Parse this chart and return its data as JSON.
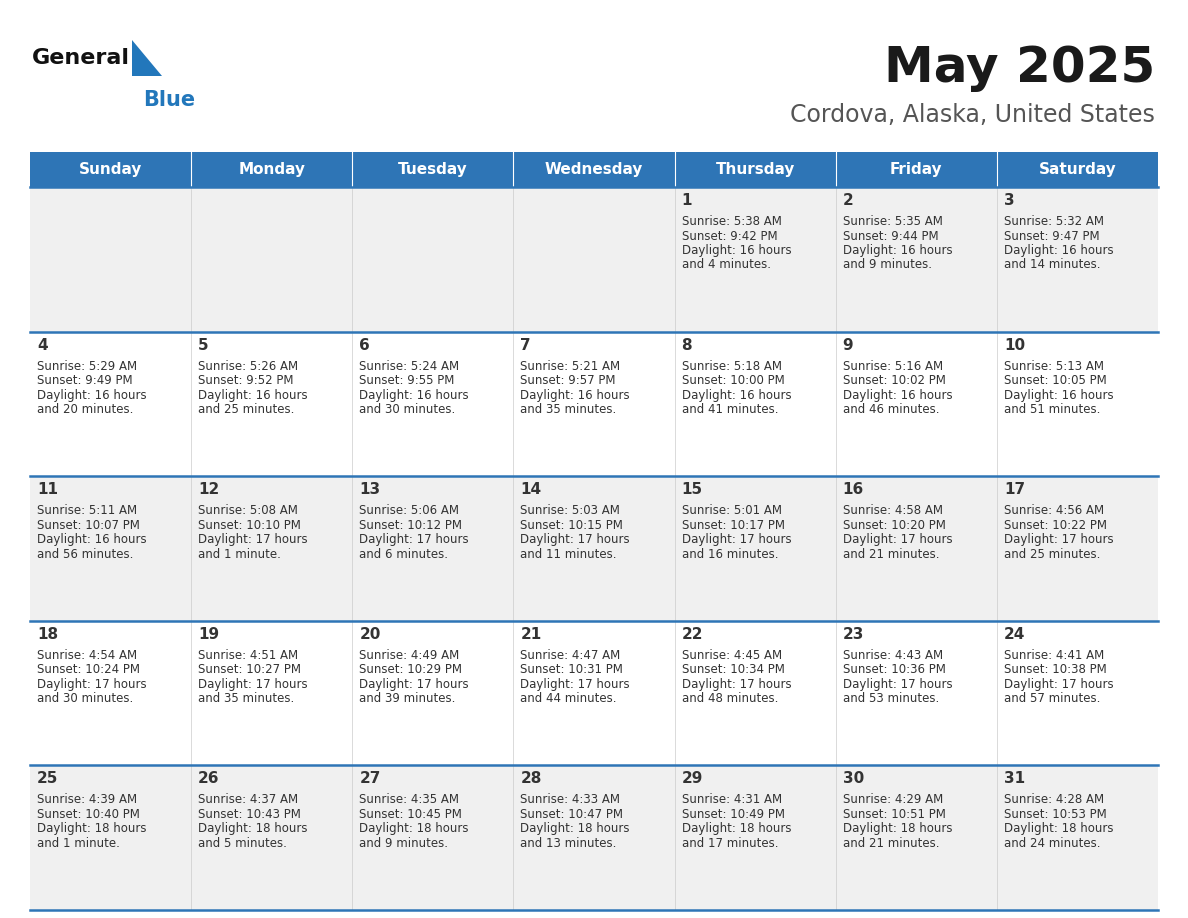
{
  "title": "May 2025",
  "subtitle": "Cordova, Alaska, United States",
  "days_of_week": [
    "Sunday",
    "Monday",
    "Tuesday",
    "Wednesday",
    "Thursday",
    "Friday",
    "Saturday"
  ],
  "header_bg": "#2E75B6",
  "header_text": "#FFFFFF",
  "row_bg_odd": "#F0F0F0",
  "row_bg_even": "#FFFFFF",
  "day_number_color": "#333333",
  "text_color": "#333333",
  "separator_color": "#2E75B6",
  "logo_general_color": "#111111",
  "logo_blue_color": "#2277BB",
  "logo_triangle_color": "#2277BB",
  "calendar_data": [
    {
      "day": 1,
      "col": 4,
      "row": 0,
      "sunrise": "5:38 AM",
      "sunset": "9:42 PM",
      "daylight_hours": 16,
      "daylight_minutes": 4
    },
    {
      "day": 2,
      "col": 5,
      "row": 0,
      "sunrise": "5:35 AM",
      "sunset": "9:44 PM",
      "daylight_hours": 16,
      "daylight_minutes": 9
    },
    {
      "day": 3,
      "col": 6,
      "row": 0,
      "sunrise": "5:32 AM",
      "sunset": "9:47 PM",
      "daylight_hours": 16,
      "daylight_minutes": 14
    },
    {
      "day": 4,
      "col": 0,
      "row": 1,
      "sunrise": "5:29 AM",
      "sunset": "9:49 PM",
      "daylight_hours": 16,
      "daylight_minutes": 20
    },
    {
      "day": 5,
      "col": 1,
      "row": 1,
      "sunrise": "5:26 AM",
      "sunset": "9:52 PM",
      "daylight_hours": 16,
      "daylight_minutes": 25
    },
    {
      "day": 6,
      "col": 2,
      "row": 1,
      "sunrise": "5:24 AM",
      "sunset": "9:55 PM",
      "daylight_hours": 16,
      "daylight_minutes": 30
    },
    {
      "day": 7,
      "col": 3,
      "row": 1,
      "sunrise": "5:21 AM",
      "sunset": "9:57 PM",
      "daylight_hours": 16,
      "daylight_minutes": 35
    },
    {
      "day": 8,
      "col": 4,
      "row": 1,
      "sunrise": "5:18 AM",
      "sunset": "10:00 PM",
      "daylight_hours": 16,
      "daylight_minutes": 41
    },
    {
      "day": 9,
      "col": 5,
      "row": 1,
      "sunrise": "5:16 AM",
      "sunset": "10:02 PM",
      "daylight_hours": 16,
      "daylight_minutes": 46
    },
    {
      "day": 10,
      "col": 6,
      "row": 1,
      "sunrise": "5:13 AM",
      "sunset": "10:05 PM",
      "daylight_hours": 16,
      "daylight_minutes": 51
    },
    {
      "day": 11,
      "col": 0,
      "row": 2,
      "sunrise": "5:11 AM",
      "sunset": "10:07 PM",
      "daylight_hours": 16,
      "daylight_minutes": 56
    },
    {
      "day": 12,
      "col": 1,
      "row": 2,
      "sunrise": "5:08 AM",
      "sunset": "10:10 PM",
      "daylight_hours": 17,
      "daylight_minutes": 1
    },
    {
      "day": 13,
      "col": 2,
      "row": 2,
      "sunrise": "5:06 AM",
      "sunset": "10:12 PM",
      "daylight_hours": 17,
      "daylight_minutes": 6
    },
    {
      "day": 14,
      "col": 3,
      "row": 2,
      "sunrise": "5:03 AM",
      "sunset": "10:15 PM",
      "daylight_hours": 17,
      "daylight_minutes": 11
    },
    {
      "day": 15,
      "col": 4,
      "row": 2,
      "sunrise": "5:01 AM",
      "sunset": "10:17 PM",
      "daylight_hours": 17,
      "daylight_minutes": 16
    },
    {
      "day": 16,
      "col": 5,
      "row": 2,
      "sunrise": "4:58 AM",
      "sunset": "10:20 PM",
      "daylight_hours": 17,
      "daylight_minutes": 21
    },
    {
      "day": 17,
      "col": 6,
      "row": 2,
      "sunrise": "4:56 AM",
      "sunset": "10:22 PM",
      "daylight_hours": 17,
      "daylight_minutes": 25
    },
    {
      "day": 18,
      "col": 0,
      "row": 3,
      "sunrise": "4:54 AM",
      "sunset": "10:24 PM",
      "daylight_hours": 17,
      "daylight_minutes": 30
    },
    {
      "day": 19,
      "col": 1,
      "row": 3,
      "sunrise": "4:51 AM",
      "sunset": "10:27 PM",
      "daylight_hours": 17,
      "daylight_minutes": 35
    },
    {
      "day": 20,
      "col": 2,
      "row": 3,
      "sunrise": "4:49 AM",
      "sunset": "10:29 PM",
      "daylight_hours": 17,
      "daylight_minutes": 39
    },
    {
      "day": 21,
      "col": 3,
      "row": 3,
      "sunrise": "4:47 AM",
      "sunset": "10:31 PM",
      "daylight_hours": 17,
      "daylight_minutes": 44
    },
    {
      "day": 22,
      "col": 4,
      "row": 3,
      "sunrise": "4:45 AM",
      "sunset": "10:34 PM",
      "daylight_hours": 17,
      "daylight_minutes": 48
    },
    {
      "day": 23,
      "col": 5,
      "row": 3,
      "sunrise": "4:43 AM",
      "sunset": "10:36 PM",
      "daylight_hours": 17,
      "daylight_minutes": 53
    },
    {
      "day": 24,
      "col": 6,
      "row": 3,
      "sunrise": "4:41 AM",
      "sunset": "10:38 PM",
      "daylight_hours": 17,
      "daylight_minutes": 57
    },
    {
      "day": 25,
      "col": 0,
      "row": 4,
      "sunrise": "4:39 AM",
      "sunset": "10:40 PM",
      "daylight_hours": 18,
      "daylight_minutes": 1
    },
    {
      "day": 26,
      "col": 1,
      "row": 4,
      "sunrise": "4:37 AM",
      "sunset": "10:43 PM",
      "daylight_hours": 18,
      "daylight_minutes": 5
    },
    {
      "day": 27,
      "col": 2,
      "row": 4,
      "sunrise": "4:35 AM",
      "sunset": "10:45 PM",
      "daylight_hours": 18,
      "daylight_minutes": 9
    },
    {
      "day": 28,
      "col": 3,
      "row": 4,
      "sunrise": "4:33 AM",
      "sunset": "10:47 PM",
      "daylight_hours": 18,
      "daylight_minutes": 13
    },
    {
      "day": 29,
      "col": 4,
      "row": 4,
      "sunrise": "4:31 AM",
      "sunset": "10:49 PM",
      "daylight_hours": 18,
      "daylight_minutes": 17
    },
    {
      "day": 30,
      "col": 5,
      "row": 4,
      "sunrise": "4:29 AM",
      "sunset": "10:51 PM",
      "daylight_hours": 18,
      "daylight_minutes": 21
    },
    {
      "day": 31,
      "col": 6,
      "row": 4,
      "sunrise": "4:28 AM",
      "sunset": "10:53 PM",
      "daylight_hours": 18,
      "daylight_minutes": 24
    }
  ],
  "num_rows": 5,
  "num_cols": 7
}
